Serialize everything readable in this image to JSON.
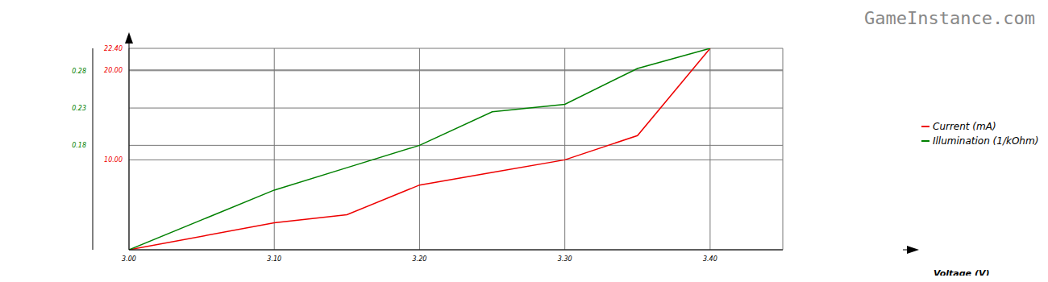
{
  "chart_data": {
    "type": "line",
    "xlabel": "Voltage (V)",
    "annotations": [
      "GameInstance.com"
    ],
    "x": [
      3.0,
      3.1,
      3.15,
      3.2,
      3.25,
      3.3,
      3.35,
      3.4
    ],
    "xlim": [
      3.0,
      3.45
    ],
    "xticks": [
      {
        "value": 3.0,
        "label": "3.00"
      },
      {
        "value": 3.1,
        "label": "3.10"
      },
      {
        "value": 3.2,
        "label": "3.20"
      },
      {
        "value": 3.3,
        "label": "3.30"
      },
      {
        "value": 3.4,
        "label": "3.40"
      }
    ],
    "ylim": [
      0,
      22.4
    ],
    "yticks": [
      {
        "value": 10,
        "label": "10.00"
      },
      {
        "value": 20,
        "label": "20.00"
      },
      {
        "value": 22.4,
        "label": "22.40"
      }
    ],
    "y2lim": [
      0.04,
      0.31
    ],
    "y2ticks": [
      0.18,
      0.23,
      0.28
    ],
    "series": [
      {
        "name": "Current (mA)",
        "color": "#ee0000",
        "values": [
          0,
          3.0,
          3.9,
          7.2,
          8.6,
          10,
          12.7,
          22.4
        ]
      },
      {
        "name": "Illumination (1/kOhm)",
        "color": "#008000",
        "axis": "y2",
        "values": [
          0.04,
          0.12,
          0.15,
          0.18,
          0.225,
          0.235,
          0.283,
          0.31
        ]
      }
    ],
    "grid": true,
    "legend": "right"
  }
}
